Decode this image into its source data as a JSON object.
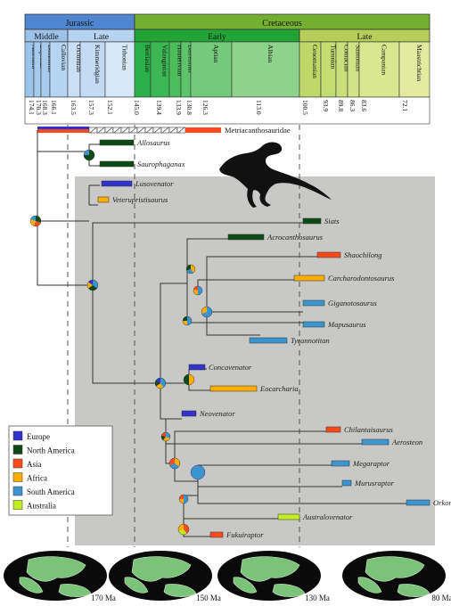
{
  "timescale": {
    "periods": [
      {
        "name": "Jurassic",
        "color": "#4f86d0"
      },
      {
        "name": "Cretaceous",
        "color": "#74b030"
      }
    ],
    "epochs": [
      {
        "name": "Middle",
        "color": "#9dc2ea"
      },
      {
        "name": "Late",
        "color": "#b6d3f2"
      },
      {
        "name": "Early",
        "color": "#22a437"
      },
      {
        "name": "Late",
        "color": "#b7cf5a"
      }
    ],
    "stages": [
      {
        "name": "Aalenian",
        "color": "#9cc4ea"
      },
      {
        "name": "Bajocian",
        "color": "#a7cbee"
      },
      {
        "name": "Bathonian",
        "color": "#a7cbee"
      },
      {
        "name": "Callovian",
        "color": "#b5d4f1"
      },
      {
        "name": "Oxfordian",
        "color": "#c8dff6"
      },
      {
        "name": "Kimmeridgian",
        "color": "#c3dbf4"
      },
      {
        "name": "Tithonian",
        "color": "#d6e8f8"
      },
      {
        "name": "Berriasian",
        "color": "#2bb04a"
      },
      {
        "name": "Valanginian",
        "color": "#3cb756"
      },
      {
        "name": "Hauterivian",
        "color": "#4dbd5e"
      },
      {
        "name": "Barremian",
        "color": "#5ec46c"
      },
      {
        "name": "Aptian",
        "color": "#74c97b"
      },
      {
        "name": "Albian",
        "color": "#8fd28c"
      },
      {
        "name": "Cenomanian",
        "color": "#bdd96a"
      },
      {
        "name": "Turonian",
        "color": "#c4dc74"
      },
      {
        "name": "Coniacian",
        "color": "#cbe07d"
      },
      {
        "name": "Santonian",
        "color": "#d2e386"
      },
      {
        "name": "Campanian",
        "color": "#d9e790"
      },
      {
        "name": "Maastrichtian",
        "color": "#e2eba0"
      }
    ],
    "boundary_ages": [
      "174.1",
      "170.3",
      "168.3",
      "166.1",
      "163.5",
      "157.3",
      "152.1",
      "145.0",
      "139.4",
      "133.9",
      "130.8",
      "126.3",
      "113.0",
      "100.5",
      "93.9",
      "89.8",
      "86.3",
      "83.6",
      "72.1"
    ]
  },
  "outgroup": "Metriacanthosauridae",
  "taxa": [
    {
      "name": "Allosaurus",
      "region": "North America"
    },
    {
      "name": "Saurophaganax",
      "region": "North America"
    },
    {
      "name": "Lusovenator",
      "region": "Europe"
    },
    {
      "name": "Veterupristisaurus",
      "region": "Africa"
    },
    {
      "name": "Siats",
      "region": "North America"
    },
    {
      "name": "Acrocanthosaurus",
      "region": "North America"
    },
    {
      "name": "Shaochilong",
      "region": "Asia"
    },
    {
      "name": "Carcharodontosaurus",
      "region": "Africa"
    },
    {
      "name": "Giganotosaurus",
      "region": "South America"
    },
    {
      "name": "Mapusaurus",
      "region": "South America"
    },
    {
      "name": "Tyrannotitan",
      "region": "South America"
    },
    {
      "name": "Concavenator",
      "region": "Europe"
    },
    {
      "name": "Eocarcharia",
      "region": "Africa"
    },
    {
      "name": "Neovenator",
      "region": "Europe"
    },
    {
      "name": "Chilantaisaurus",
      "region": "Asia"
    },
    {
      "name": "Aerosteon",
      "region": "South America"
    },
    {
      "name": "Megaraptor",
      "region": "South America"
    },
    {
      "name": "Murusraptor",
      "region": "South America"
    },
    {
      "name": "Orkoraptor",
      "region": "South America"
    },
    {
      "name": "Australovenator",
      "region": "Australia"
    },
    {
      "name": "Fukuiraptor",
      "region": "Asia"
    }
  ],
  "legend": [
    {
      "label": "Europe",
      "color": "#3333cc"
    },
    {
      "label": "North America",
      "color": "#0f4a16"
    },
    {
      "label": "Asia",
      "color": "#ff4a1c"
    },
    {
      "label": "Africa",
      "color": "#ffae00"
    },
    {
      "label": "South America",
      "color": "#3b94cf"
    },
    {
      "label": "Australia",
      "color": "#c2ee1e"
    }
  ],
  "maps": [
    "170 Ma",
    "150 Ma",
    "130 Ma",
    "80 Ma"
  ]
}
